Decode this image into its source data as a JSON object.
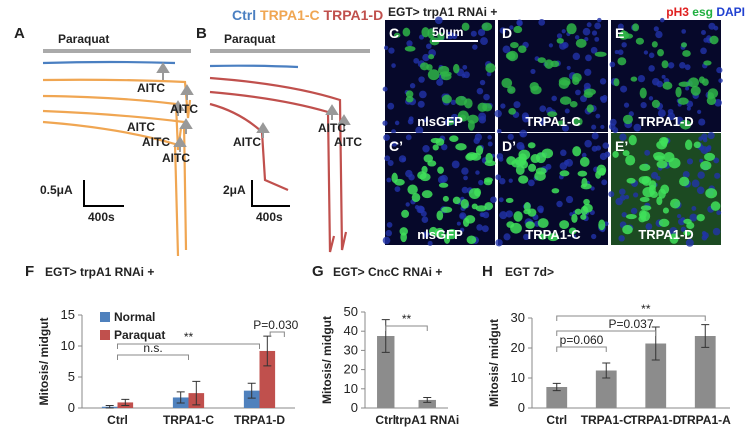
{
  "panel_a": {
    "label": "A",
    "stimulus": "Paraquat",
    "aitc": [
      "AITC",
      "AITC",
      "AITC",
      "AITC",
      "AITC"
    ],
    "scale_y": "0.5μA",
    "scale_x": "400s"
  },
  "panel_b": {
    "label": "B",
    "legend": [
      "Ctrl",
      "TRPA1-C",
      "TRPA1-D"
    ],
    "stimulus": "Paraquat",
    "aitc": [
      "AITC",
      "AITC",
      "AITC"
    ],
    "scale_y": "2μA",
    "scale_x": "400s"
  },
  "images": {
    "title": "EGT> trpA1 RNAi +",
    "stains": [
      "pH3",
      "esg",
      "DAPI"
    ],
    "scale": "50μm",
    "panels": [
      {
        "label": "C",
        "caption": "nlsGFP"
      },
      {
        "label": "D",
        "caption": "TRPA1-C"
      },
      {
        "label": "E",
        "caption": "TRPA1-D"
      },
      {
        "label": "C’",
        "caption": "nlsGFP"
      },
      {
        "label": "D’",
        "caption": "TRPA1-C"
      },
      {
        "label": "E’",
        "caption": "TRPA1-D"
      }
    ]
  },
  "chart_data": [
    {
      "type": "grouped_bar",
      "label": "F",
      "title": "EGT> trpA1 RNAi +",
      "y_label": "Mitosis/ midgut",
      "categories": [
        "Ctrl",
        "TRPA1-C",
        "TRPA1-D"
      ],
      "series": [
        {
          "name": "Normal",
          "color": "#4f81bd",
          "values": [
            0.2,
            1.7,
            2.8
          ],
          "errors": [
            0.2,
            0.9,
            1.2
          ]
        },
        {
          "name": "Paraquat",
          "color": "#c0504d",
          "values": [
            0.9,
            2.4,
            9.2
          ],
          "errors": [
            0.5,
            1.9,
            2.4
          ]
        }
      ],
      "ylim": [
        0,
        15
      ],
      "yticks": [
        0,
        5,
        10,
        15
      ],
      "legend": "upper left",
      "annotations": [
        "n.s.",
        "**",
        "P=0.030"
      ]
    },
    {
      "type": "bar",
      "label": "G",
      "title": "EGT> CncC RNAi +",
      "y_label": "Mitosis/ midgut",
      "categories": [
        "Ctrl",
        "trpA1 RNAi"
      ],
      "values": [
        37.5,
        4.2
      ],
      "errors": [
        8.5,
        1.3
      ],
      "color": "#8c8c8c",
      "ylim": [
        0,
        50
      ],
      "yticks": [
        0,
        10,
        20,
        30,
        40,
        50
      ],
      "annotations": [
        "**"
      ]
    },
    {
      "type": "bar",
      "label": "H",
      "title": "EGT 7d>",
      "y_label": "Mitosis/ midgut",
      "categories": [
        "Ctrl",
        "TRPA1-C",
        "TRPA1-D",
        "TRPA1-A"
      ],
      "values": [
        7,
        12.5,
        21.5,
        24
      ],
      "errors": [
        1.2,
        2.5,
        5.5,
        3.8
      ],
      "color": "#8c8c8c",
      "ylim": [
        0,
        30
      ],
      "yticks": [
        0,
        10,
        20,
        30
      ],
      "annotations": [
        "p=0.060",
        "P=0.037",
        "**"
      ]
    }
  ]
}
